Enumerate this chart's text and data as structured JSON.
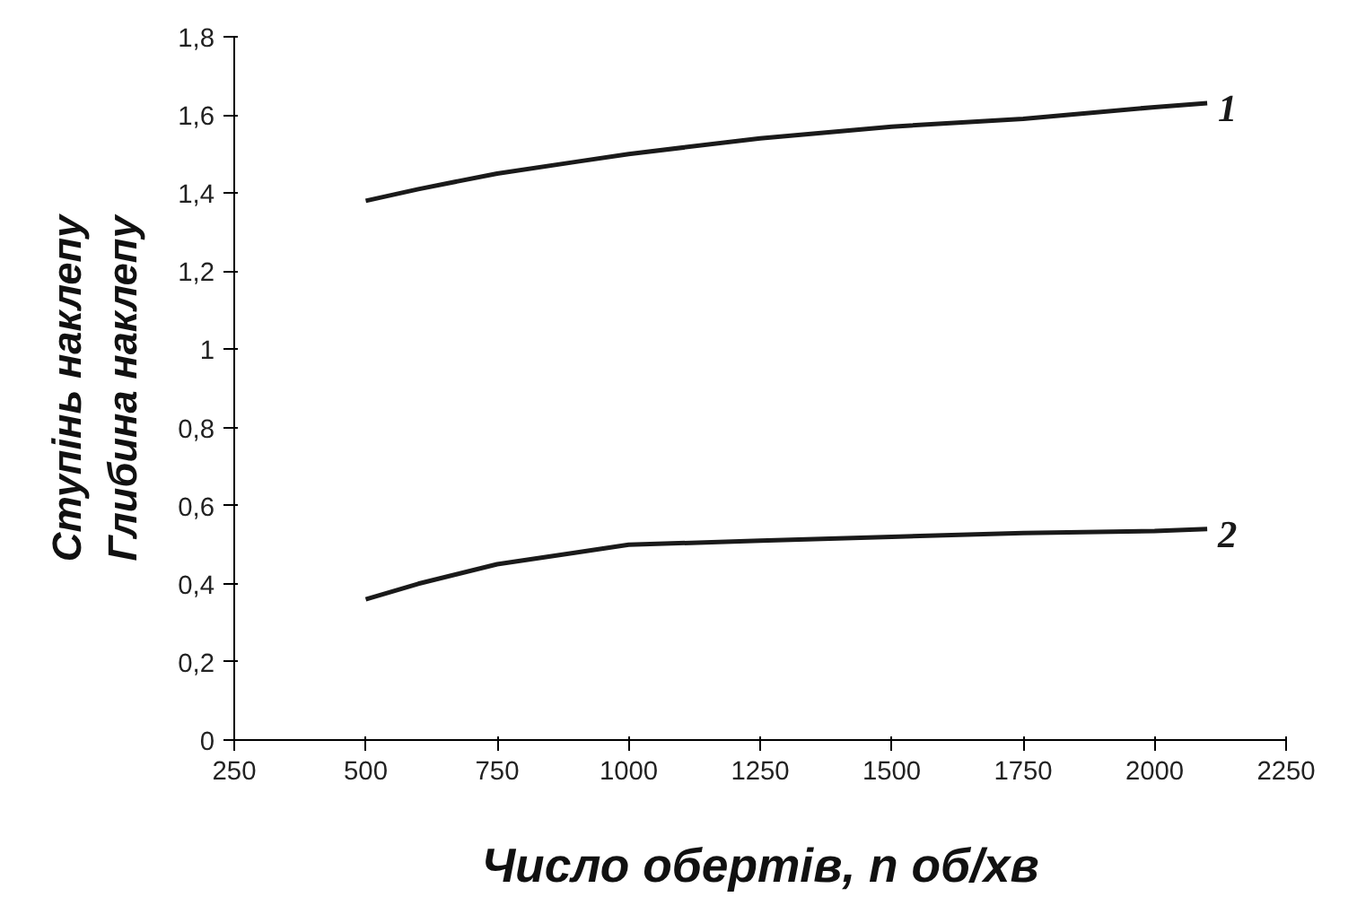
{
  "chart_data": {
    "type": "line",
    "xlabel": "Число обертів, n об/хв",
    "ylabel": "Ступінь наклепу\nГлибина наклепу",
    "x": [
      500,
      600,
      750,
      900,
      1000,
      1250,
      1500,
      1750,
      2000,
      2100
    ],
    "series": [
      {
        "name": "1",
        "color": "#1a1a1a",
        "values": [
          1.38,
          1.41,
          1.45,
          1.48,
          1.5,
          1.54,
          1.57,
          1.59,
          1.62,
          1.63
        ]
      },
      {
        "name": "2",
        "color": "#1a1a1a",
        "values": [
          0.36,
          0.4,
          0.45,
          0.48,
          0.5,
          0.51,
          0.52,
          0.53,
          0.535,
          0.54
        ]
      }
    ],
    "xlim": [
      250,
      2250
    ],
    "xticks": [
      250,
      500,
      750,
      1000,
      1250,
      1500,
      1750,
      2000,
      2250
    ],
    "ylim": [
      0,
      1.8
    ],
    "yticks": [
      0,
      {
        "value": 0.2,
        "label": "0,2"
      },
      {
        "value": 0.4,
        "label": "0,4"
      },
      {
        "value": 0.6,
        "label": "0,6"
      },
      {
        "value": 0.8,
        "label": "0,8"
      },
      1,
      {
        "value": 1.2,
        "label": "1,2"
      },
      {
        "value": 1.4,
        "label": "1,4"
      },
      {
        "value": 1.6,
        "label": "1,6"
      },
      {
        "value": 1.8,
        "label": "1,8"
      }
    ],
    "grid": false,
    "legend": false,
    "marker": "none",
    "line_style": "solid"
  }
}
